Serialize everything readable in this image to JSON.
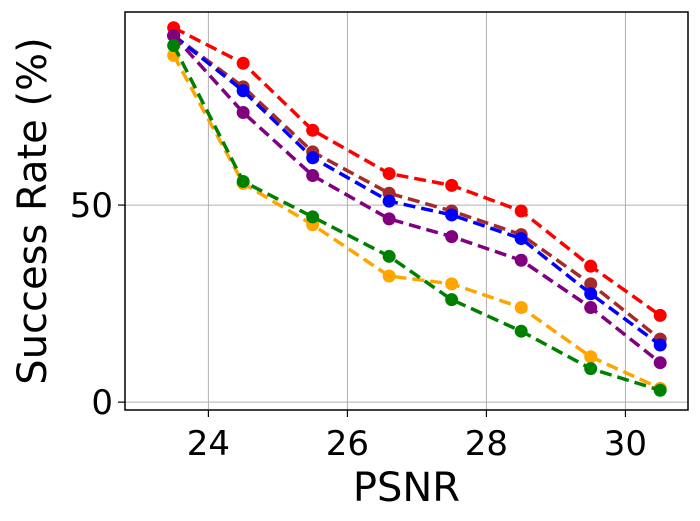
{
  "chart_data": {
    "type": "line",
    "xlabel": "PSNR",
    "ylabel": "Success Rate (%)",
    "xlim": [
      22.8,
      30.9
    ],
    "ylim": [
      -2,
      99
    ],
    "x_ticks": [
      24,
      26,
      28,
      30
    ],
    "x_tick_labels": [
      "24",
      "26",
      "28",
      "30"
    ],
    "y_ticks": [
      0,
      50
    ],
    "y_tick_labels": [
      "0",
      "50"
    ],
    "grid": true,
    "legend": "none",
    "x": [
      23.5,
      24.5,
      25.5,
      26.6,
      27.5,
      28.5,
      29.5,
      30.5
    ],
    "series": [
      {
        "color": "#ff0000",
        "values": [
          95,
          86,
          69,
          58,
          55,
          48.5,
          34.5,
          22
        ]
      },
      {
        "color": "#a52a2a",
        "values": [
          93,
          80,
          63.5,
          53,
          48.5,
          42.5,
          30,
          16
        ]
      },
      {
        "color": "#0000ff",
        "values": [
          93,
          79,
          62,
          51,
          47.5,
          41.5,
          27.5,
          14.5
        ]
      },
      {
        "color": "#800080",
        "values": [
          93,
          73.5,
          57.5,
          46.5,
          42,
          36,
          24,
          10
        ]
      },
      {
        "color": "#ffa500",
        "values": [
          88,
          55.5,
          45,
          32,
          30,
          24,
          11.5,
          3.5
        ]
      },
      {
        "color": "#008000",
        "values": [
          90.5,
          56,
          47,
          37,
          26,
          18,
          8.5,
          3
        ]
      }
    ]
  }
}
